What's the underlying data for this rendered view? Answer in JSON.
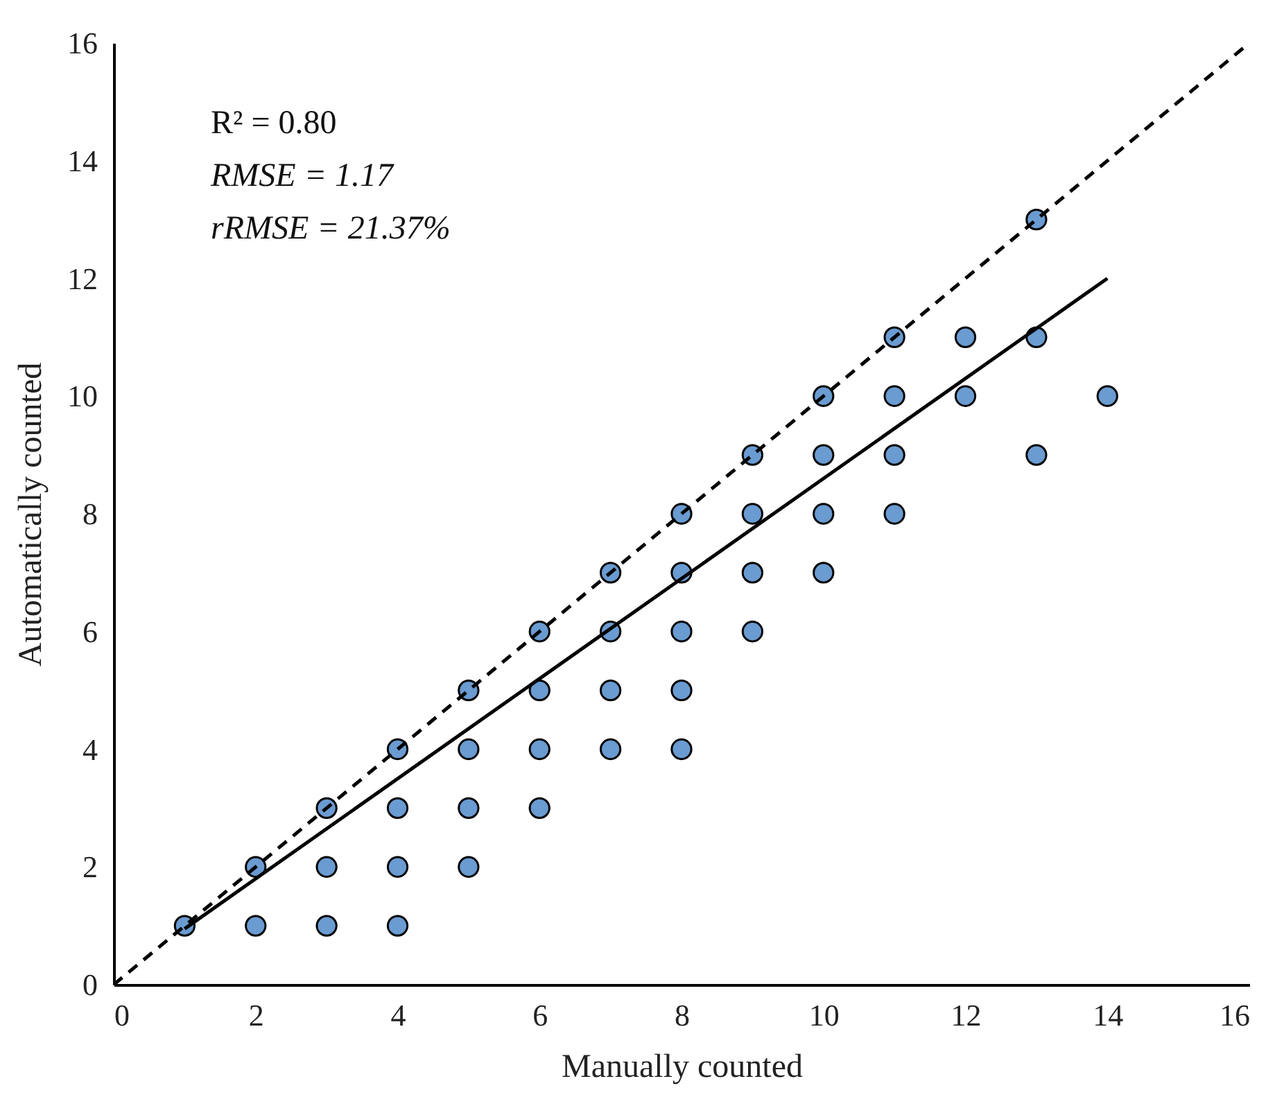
{
  "chart_data": {
    "type": "scatter",
    "xlabel": "Manually counted",
    "ylabel": "Automatically counted",
    "xlim": [
      0,
      16
    ],
    "ylim": [
      0,
      16
    ],
    "xticks": [
      0,
      2,
      4,
      6,
      8,
      10,
      12,
      14,
      16
    ],
    "yticks": [
      0,
      2,
      4,
      6,
      8,
      10,
      12,
      14,
      16
    ],
    "grid": false,
    "annotations": [
      "R² = 0.80",
      "RMSE = 1.17",
      "rRMSE = 21.37%"
    ],
    "series": [
      {
        "color": "#6a9bd1",
        "marker": "circle",
        "x": [
          1,
          2,
          2,
          3,
          3,
          3,
          4,
          4,
          4,
          4,
          5,
          5,
          5,
          5,
          6,
          6,
          6,
          6,
          7,
          7,
          7,
          7,
          8,
          8,
          8,
          8,
          8,
          9,
          9,
          9,
          9,
          10,
          10,
          10,
          10,
          11,
          11,
          11,
          11,
          12,
          12,
          13,
          13,
          13,
          14
        ],
        "values": [
          1,
          2,
          1,
          3,
          2,
          1,
          4,
          3,
          2,
          1,
          5,
          4,
          3,
          2,
          6,
          5,
          4,
          3,
          7,
          6,
          5,
          4,
          8,
          7,
          6,
          5,
          4,
          9,
          8,
          7,
          6,
          10,
          9,
          8,
          7,
          11,
          10,
          9,
          8,
          11,
          10,
          13,
          11,
          9,
          10
        ]
      },
      {
        "type": "line",
        "color": "#000000",
        "line_style": "dashed",
        "marker": "none",
        "x": [
          0,
          16
        ],
        "values": [
          0,
          16
        ]
      },
      {
        "type": "line",
        "color": "#000000",
        "line_style": "solid",
        "marker": "none",
        "x": [
          1,
          14
        ],
        "values": [
          0.95,
          12
        ]
      }
    ]
  }
}
